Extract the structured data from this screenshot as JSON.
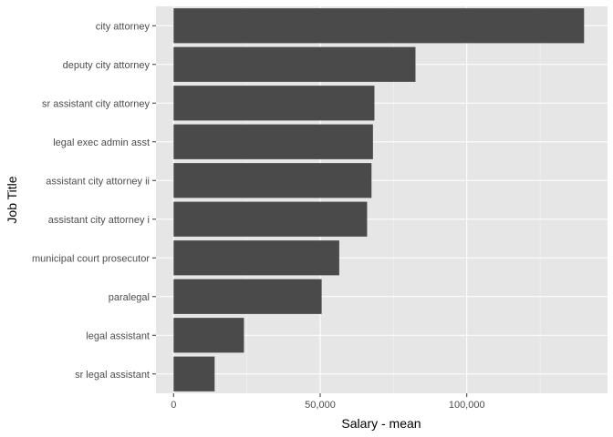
{
  "chart_data": {
    "type": "bar",
    "orientation": "horizontal",
    "categories": [
      "city attorney",
      "deputy city attorney",
      "sr assistant city attorney",
      "legal exec admin asst",
      "assistant city attorney ii",
      "assistant city attorney i",
      "municipal court prosecutor",
      "paralegal",
      "legal assistant",
      "sr legal assistant"
    ],
    "values": [
      140000,
      82500,
      68500,
      68000,
      67500,
      66000,
      56500,
      50500,
      24000,
      14000
    ],
    "xlabel": "Salary - mean",
    "ylabel": "Job Title",
    "xlim": [
      -6000,
      148000
    ],
    "x_ticks": [
      0,
      50000,
      100000
    ],
    "x_tick_labels": [
      "0",
      "50,000",
      "100,000"
    ],
    "x_minor_ticks": [
      25000,
      75000,
      125000
    ],
    "grid": true,
    "colors": {
      "bar": "#4a4a4a",
      "panel": "#e6e6e6",
      "grid": "#ffffff"
    }
  }
}
